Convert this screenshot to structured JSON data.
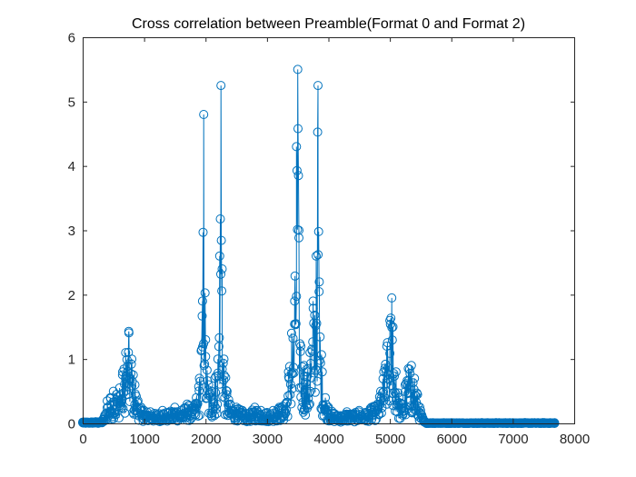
{
  "chart_data": {
    "type": "line",
    "title": "Cross correlation between Preamble(Format 0 and Format 2)",
    "xlabel": "",
    "ylabel": "",
    "xlim": [
      0,
      8000
    ],
    "ylim": [
      0,
      6
    ],
    "x_ticks": [
      "0",
      "1000",
      "2000",
      "3000",
      "4000",
      "5000",
      "6000",
      "7000",
      "8000"
    ],
    "y_ticks": [
      "0",
      "1",
      "2",
      "3",
      "4",
      "5",
      "6"
    ],
    "grid": false,
    "legend": "none",
    "marker": "circle",
    "color": "#0072BD",
    "n_points": 7680,
    "x_max": 7680,
    "series": [
      {
        "x": [
          0,
          300,
          350,
          400,
          450,
          500,
          550,
          600,
          650,
          700,
          750,
          800,
          850,
          900,
          950,
          1000,
          1100,
          1200,
          1300,
          1400,
          1500,
          1600,
          1700,
          1800,
          1850,
          1900,
          1950,
          1970,
          2000,
          2050,
          2100,
          2150,
          2200,
          2230,
          2250,
          2270,
          2300,
          2350,
          2400,
          2500,
          2600,
          2700,
          2800,
          2900,
          3000,
          3100,
          3200,
          3300,
          3350,
          3400,
          3450,
          3480,
          3500,
          3520,
          3550,
          3600,
          3650,
          3700,
          3750,
          3800,
          3830,
          3850,
          3900,
          3950,
          4000,
          4100,
          4200,
          4300,
          4400,
          4500,
          4600,
          4700,
          4800,
          4850,
          4900,
          4950,
          5000,
          5030,
          5050,
          5100,
          5150,
          5200,
          5250,
          5300,
          5350,
          5400,
          5450,
          5500,
          5550,
          5600,
          5700,
          6000,
          6500,
          7000,
          7500,
          7680
        ],
        "y": [
          0.02,
          0.03,
          0.1,
          0.35,
          0.4,
          0.5,
          0.45,
          0.55,
          0.8,
          1.1,
          1.43,
          1.0,
          0.6,
          0.35,
          0.25,
          0.2,
          0.18,
          0.15,
          0.2,
          0.17,
          0.25,
          0.2,
          0.3,
          0.25,
          0.4,
          0.7,
          1.9,
          4.8,
          1.3,
          0.6,
          0.5,
          0.7,
          1.0,
          2.6,
          5.25,
          2.4,
          1.0,
          0.5,
          0.3,
          0.25,
          0.2,
          0.15,
          0.25,
          0.2,
          0.17,
          0.2,
          0.25,
          0.3,
          0.8,
          1.4,
          1.9,
          4.3,
          5.5,
          3.0,
          1.2,
          0.9,
          0.8,
          1.1,
          1.9,
          2.6,
          5.25,
          2.2,
          0.8,
          0.4,
          0.25,
          0.15,
          0.12,
          0.18,
          0.15,
          0.2,
          0.17,
          0.25,
          0.3,
          0.5,
          0.8,
          1.2,
          1.6,
          1.95,
          1.5,
          0.8,
          0.4,
          0.3,
          0.6,
          0.85,
          0.9,
          0.7,
          0.45,
          0.2,
          0.05,
          0.01,
          0.01,
          0.01,
          0.01,
          0.01,
          0.01,
          0.01
        ]
      }
    ]
  }
}
